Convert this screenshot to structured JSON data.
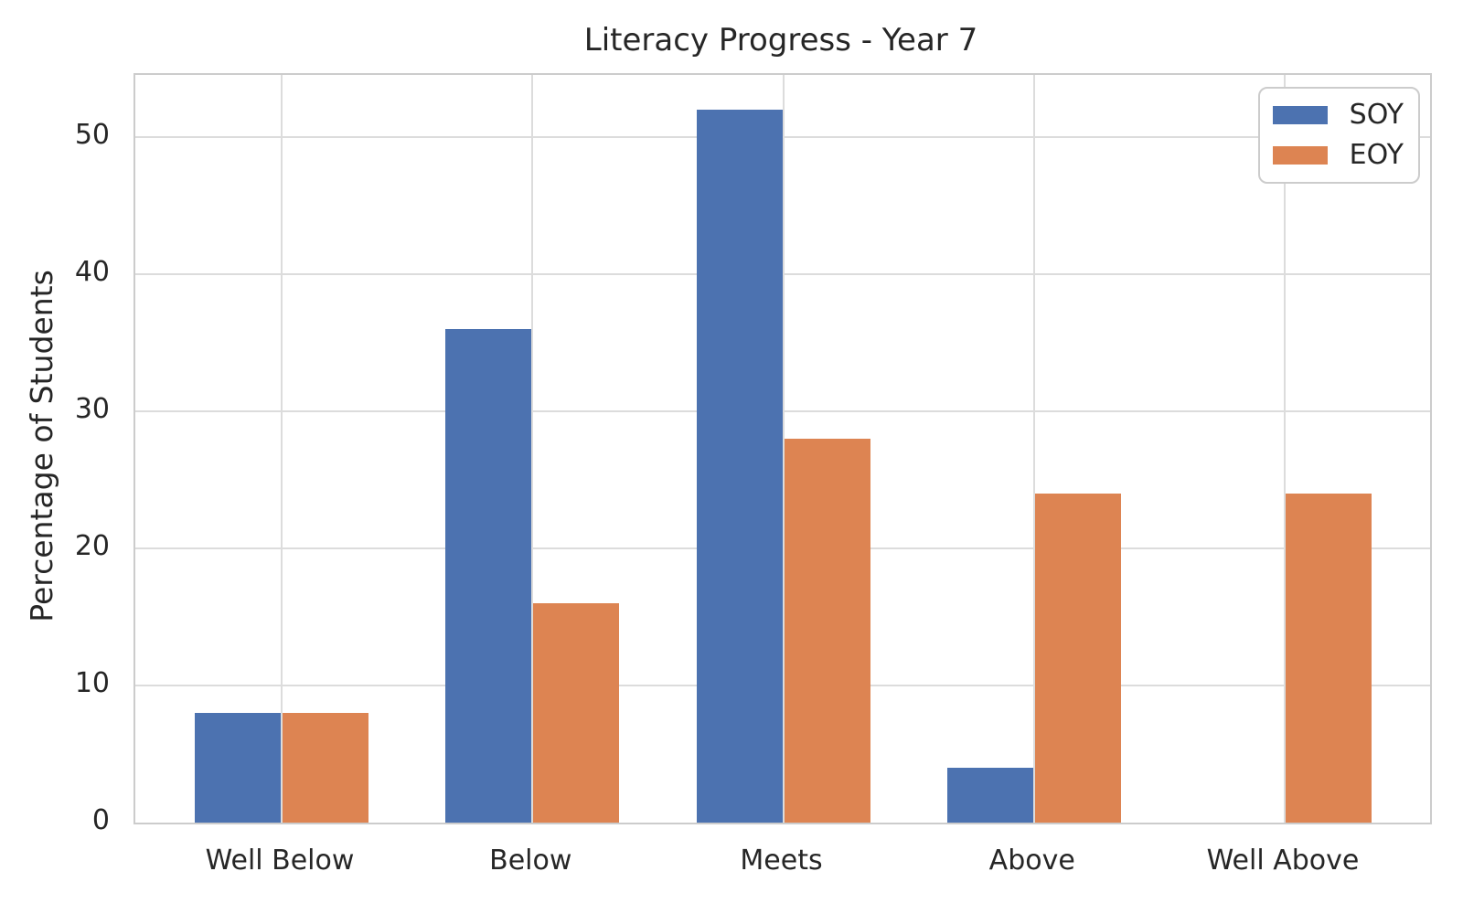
{
  "chart_data": {
    "type": "bar",
    "title": "Literacy Progress - Year 7",
    "xlabel": "",
    "ylabel": "Percentage of Students",
    "categories": [
      "Well Below",
      "Below",
      "Meets",
      "Above",
      "Well Above"
    ],
    "series": [
      {
        "name": "SOY",
        "color": "#4C72B0",
        "values": [
          8,
          36,
          52,
          4,
          0
        ]
      },
      {
        "name": "EOY",
        "color": "#DD8452",
        "values": [
          8,
          16,
          28,
          24,
          24
        ]
      }
    ],
    "yticks": [
      0,
      10,
      20,
      30,
      40,
      50
    ],
    "ylim": [
      0,
      54.5
    ],
    "grid": true,
    "grid_color": "#dcdcdc",
    "spine_color": "#cccccc",
    "text_color": "#262626",
    "background_color": "#ffffff",
    "legend_position": "upper right"
  }
}
